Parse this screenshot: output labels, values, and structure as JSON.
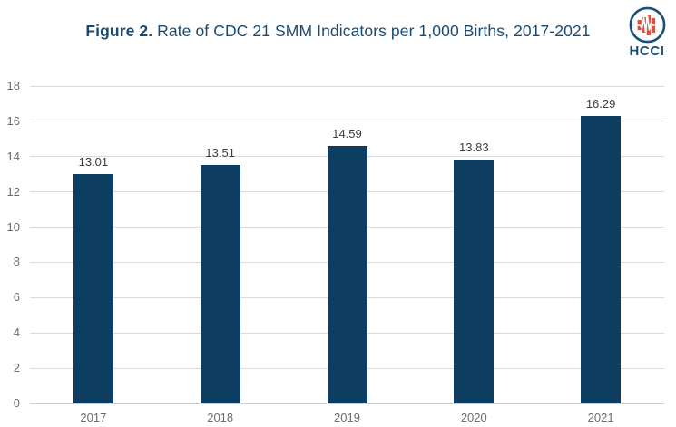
{
  "header": {
    "title_bold": "Figure 2.",
    "title_rest": "Rate of CDC 21 SMM Indicators per 1,000 Births, 2017-2021"
  },
  "logo": {
    "text": "HCCI"
  },
  "chart_data": {
    "type": "bar",
    "title": "Figure 2. Rate of CDC 21 SMM Indicators per 1,000 Births, 2017-2021",
    "categories": [
      "2017",
      "2018",
      "2019",
      "2020",
      "2021"
    ],
    "values": [
      13.01,
      13.51,
      14.59,
      13.83,
      16.29
    ],
    "value_labels": [
      "13.01",
      "13.51",
      "14.59",
      "13.83",
      "16.29"
    ],
    "xlabel": "",
    "ylabel": "",
    "ylim": [
      0,
      18
    ],
    "yticks": [
      0,
      2,
      4,
      6,
      8,
      10,
      12,
      14,
      16,
      18
    ],
    "grid": true,
    "legend": false,
    "bar_color": "#0d3e62",
    "gridline_color": "#dadada",
    "tick_label_color": "#6b6b6b",
    "value_label_color": "#3d3d3d"
  },
  "colors": {
    "title": "#1a4a72",
    "background": "#ffffff",
    "logo_navy": "#1d4e74",
    "logo_red": "#de4f3e",
    "logo_baseline_gray": "#c4cad1"
  }
}
